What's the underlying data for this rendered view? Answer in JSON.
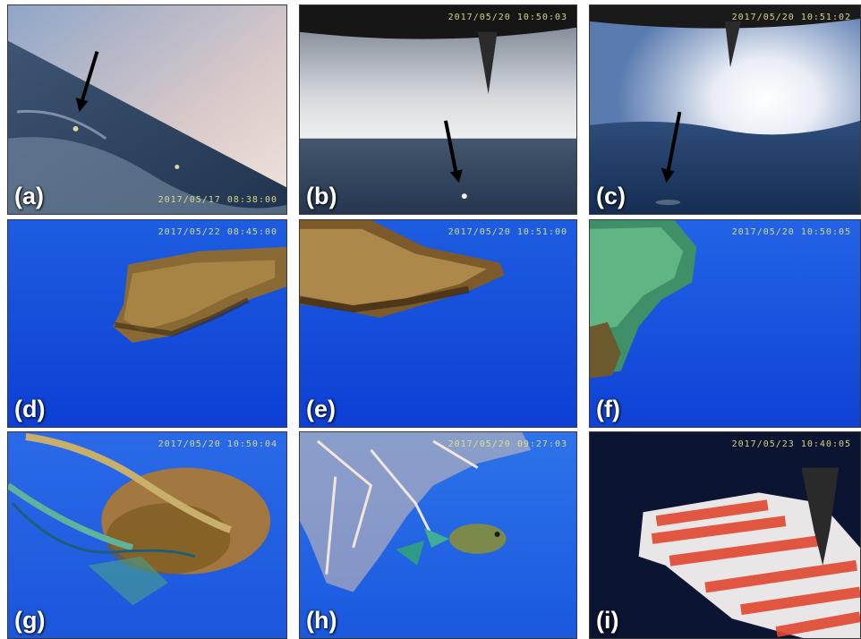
{
  "panels": {
    "a": {
      "label": "(a)",
      "timestamp": "2017/05/17 08:38:00"
    },
    "b": {
      "label": "(b)",
      "timestamp": "2017/05/20 10:50:03"
    },
    "c": {
      "label": "(c)",
      "timestamp": "2017/05/20 10:51:02"
    },
    "d": {
      "label": "(d)",
      "timestamp": "2017/05/22 08:45:00"
    },
    "e": {
      "label": "(e)",
      "timestamp": "2017/05/20 10:51:00"
    },
    "f": {
      "label": "(f)",
      "timestamp": "2017/05/20 10:50:05"
    },
    "g": {
      "label": "(g)",
      "timestamp": "2017/05/20 10:50:04"
    },
    "h": {
      "label": "(h)",
      "timestamp": "2017/05/20 09:27:03"
    },
    "i": {
      "label": "(i)",
      "timestamp": "2017/05/23 10:40:05"
    }
  }
}
